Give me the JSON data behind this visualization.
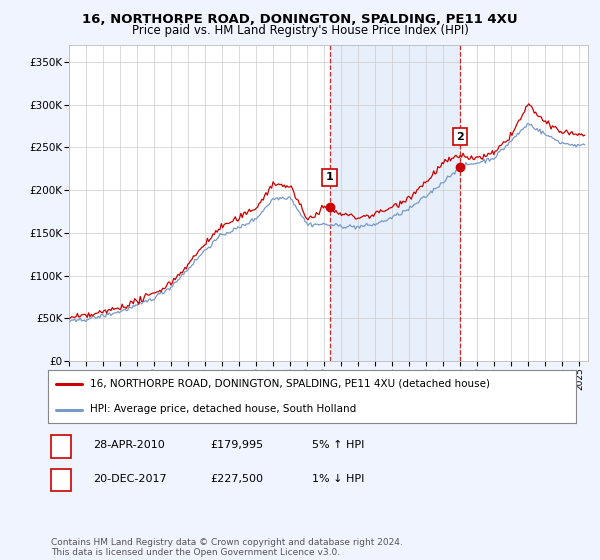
{
  "title": "16, NORTHORPE ROAD, DONINGTON, SPALDING, PE11 4XU",
  "subtitle": "Price paid vs. HM Land Registry's House Price Index (HPI)",
  "ylabel_ticks": [
    "£0",
    "£50K",
    "£100K",
    "£150K",
    "£200K",
    "£250K",
    "£300K",
    "£350K"
  ],
  "ytick_vals": [
    0,
    50000,
    100000,
    150000,
    200000,
    250000,
    300000,
    350000
  ],
  "ylim": [
    0,
    370000
  ],
  "xlim_start": 1995.0,
  "xlim_end": 2025.5,
  "fig_bg_color": "#f0f4ff",
  "plot_bg_color": "#ffffff",
  "grid_color": "#cccccc",
  "hpi_color": "#7799cc",
  "price_color": "#cc0000",
  "marker1_x": 2010.32,
  "marker1_y": 179995,
  "marker1_label": "1",
  "marker1_date": "28-APR-2010",
  "marker1_price": "£179,995",
  "marker1_hpi": "5% ↑ HPI",
  "marker2_x": 2017.97,
  "marker2_y": 227500,
  "marker2_label": "2",
  "marker2_date": "20-DEC-2017",
  "marker2_price": "£227,500",
  "marker2_hpi": "1% ↓ HPI",
  "legend_line1": "16, NORTHORPE ROAD, DONINGTON, SPALDING, PE11 4XU (detached house)",
  "legend_line2": "HPI: Average price, detached house, South Holland",
  "footer": "Contains HM Land Registry data © Crown copyright and database right 2024.\nThis data is licensed under the Open Government Licence v3.0.",
  "shade_color": "#d0e0f8",
  "shade_alpha": 0.5,
  "hpi_anchors_x": [
    1995,
    1996,
    1997,
    1998,
    1999,
    2000,
    2001,
    2002,
    2003,
    2004,
    2005,
    2006,
    2007,
    2008,
    2009,
    2010,
    2011,
    2012,
    2013,
    2014,
    2015,
    2016,
    2017,
    2018,
    2019,
    2020,
    2021,
    2022,
    2023,
    2024,
    2025
  ],
  "hpi_anchors_y": [
    46000,
    49000,
    53000,
    58000,
    65000,
    74000,
    87000,
    108000,
    130000,
    148000,
    156000,
    167000,
    190000,
    192000,
    160000,
    160000,
    158000,
    157000,
    160000,
    168000,
    178000,
    193000,
    210000,
    228000,
    232000,
    238000,
    258000,
    278000,
    265000,
    255000,
    252000
  ],
  "price_anchors_x": [
    1995,
    1996,
    1997,
    1998,
    1999,
    2000,
    2001,
    2002,
    2003,
    2004,
    2005,
    2006,
    2007,
    2008,
    2009,
    2010,
    2011,
    2012,
    2013,
    2014,
    2015,
    2016,
    2017,
    2018,
    2019,
    2020,
    2021,
    2022,
    2023,
    2024,
    2025
  ],
  "price_anchors_y": [
    50000,
    53000,
    57000,
    63000,
    70000,
    79000,
    92000,
    113000,
    138000,
    158000,
    167000,
    180000,
    207000,
    205000,
    165000,
    179995,
    172000,
    168000,
    172000,
    180000,
    192000,
    210000,
    232000,
    240000,
    237000,
    243000,
    265000,
    300000,
    278000,
    268000,
    265000
  ]
}
